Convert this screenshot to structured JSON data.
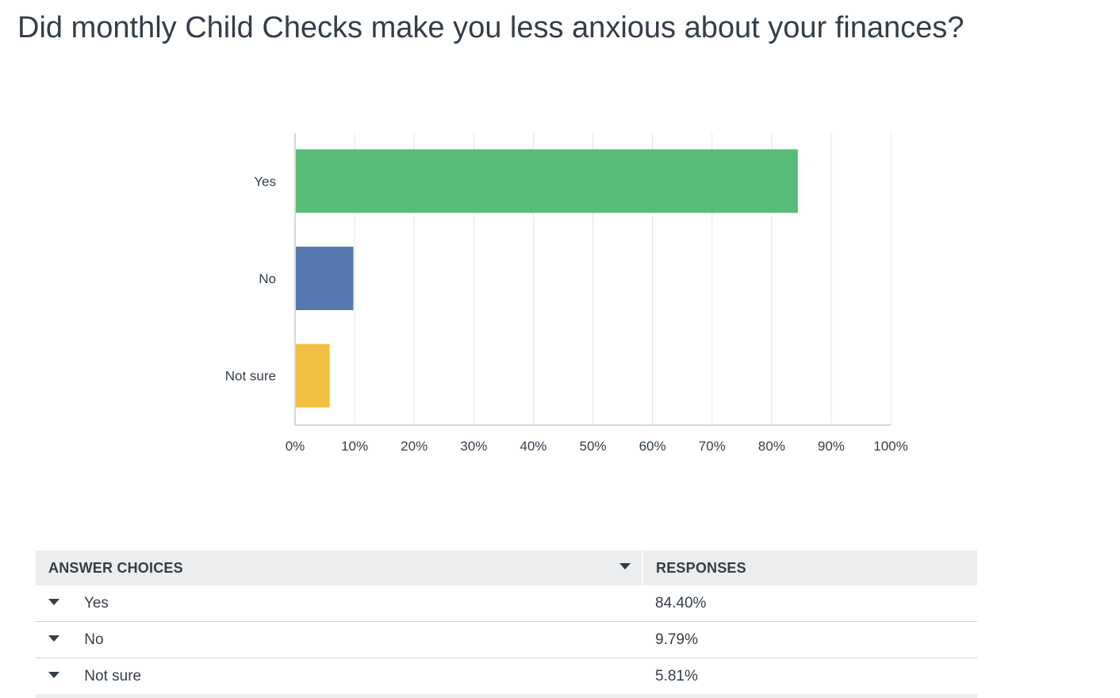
{
  "question": {
    "title": "Did monthly Child Checks make you less anxious about your finances?"
  },
  "chart_data": {
    "type": "bar",
    "orientation": "horizontal",
    "categories": [
      "Yes",
      "No",
      "Not sure"
    ],
    "values": [
      84.4,
      9.79,
      5.81
    ],
    "colors": [
      "#56bc76",
      "#5679b0",
      "#f1c040"
    ],
    "xlim": [
      0,
      100
    ],
    "xticks": [
      "0%",
      "10%",
      "20%",
      "30%",
      "40%",
      "50%",
      "60%",
      "70%",
      "80%",
      "90%",
      "100%"
    ],
    "grid": true,
    "title": "",
    "xlabel": "",
    "ylabel": ""
  },
  "table": {
    "header_choices": "ANSWER CHOICES",
    "header_responses": "RESPONSES",
    "rows": [
      {
        "choice": "Yes",
        "response": "84.40%"
      },
      {
        "choice": "No",
        "response": "9.79%"
      },
      {
        "choice": "Not sure",
        "response": "5.81%"
      }
    ]
  }
}
